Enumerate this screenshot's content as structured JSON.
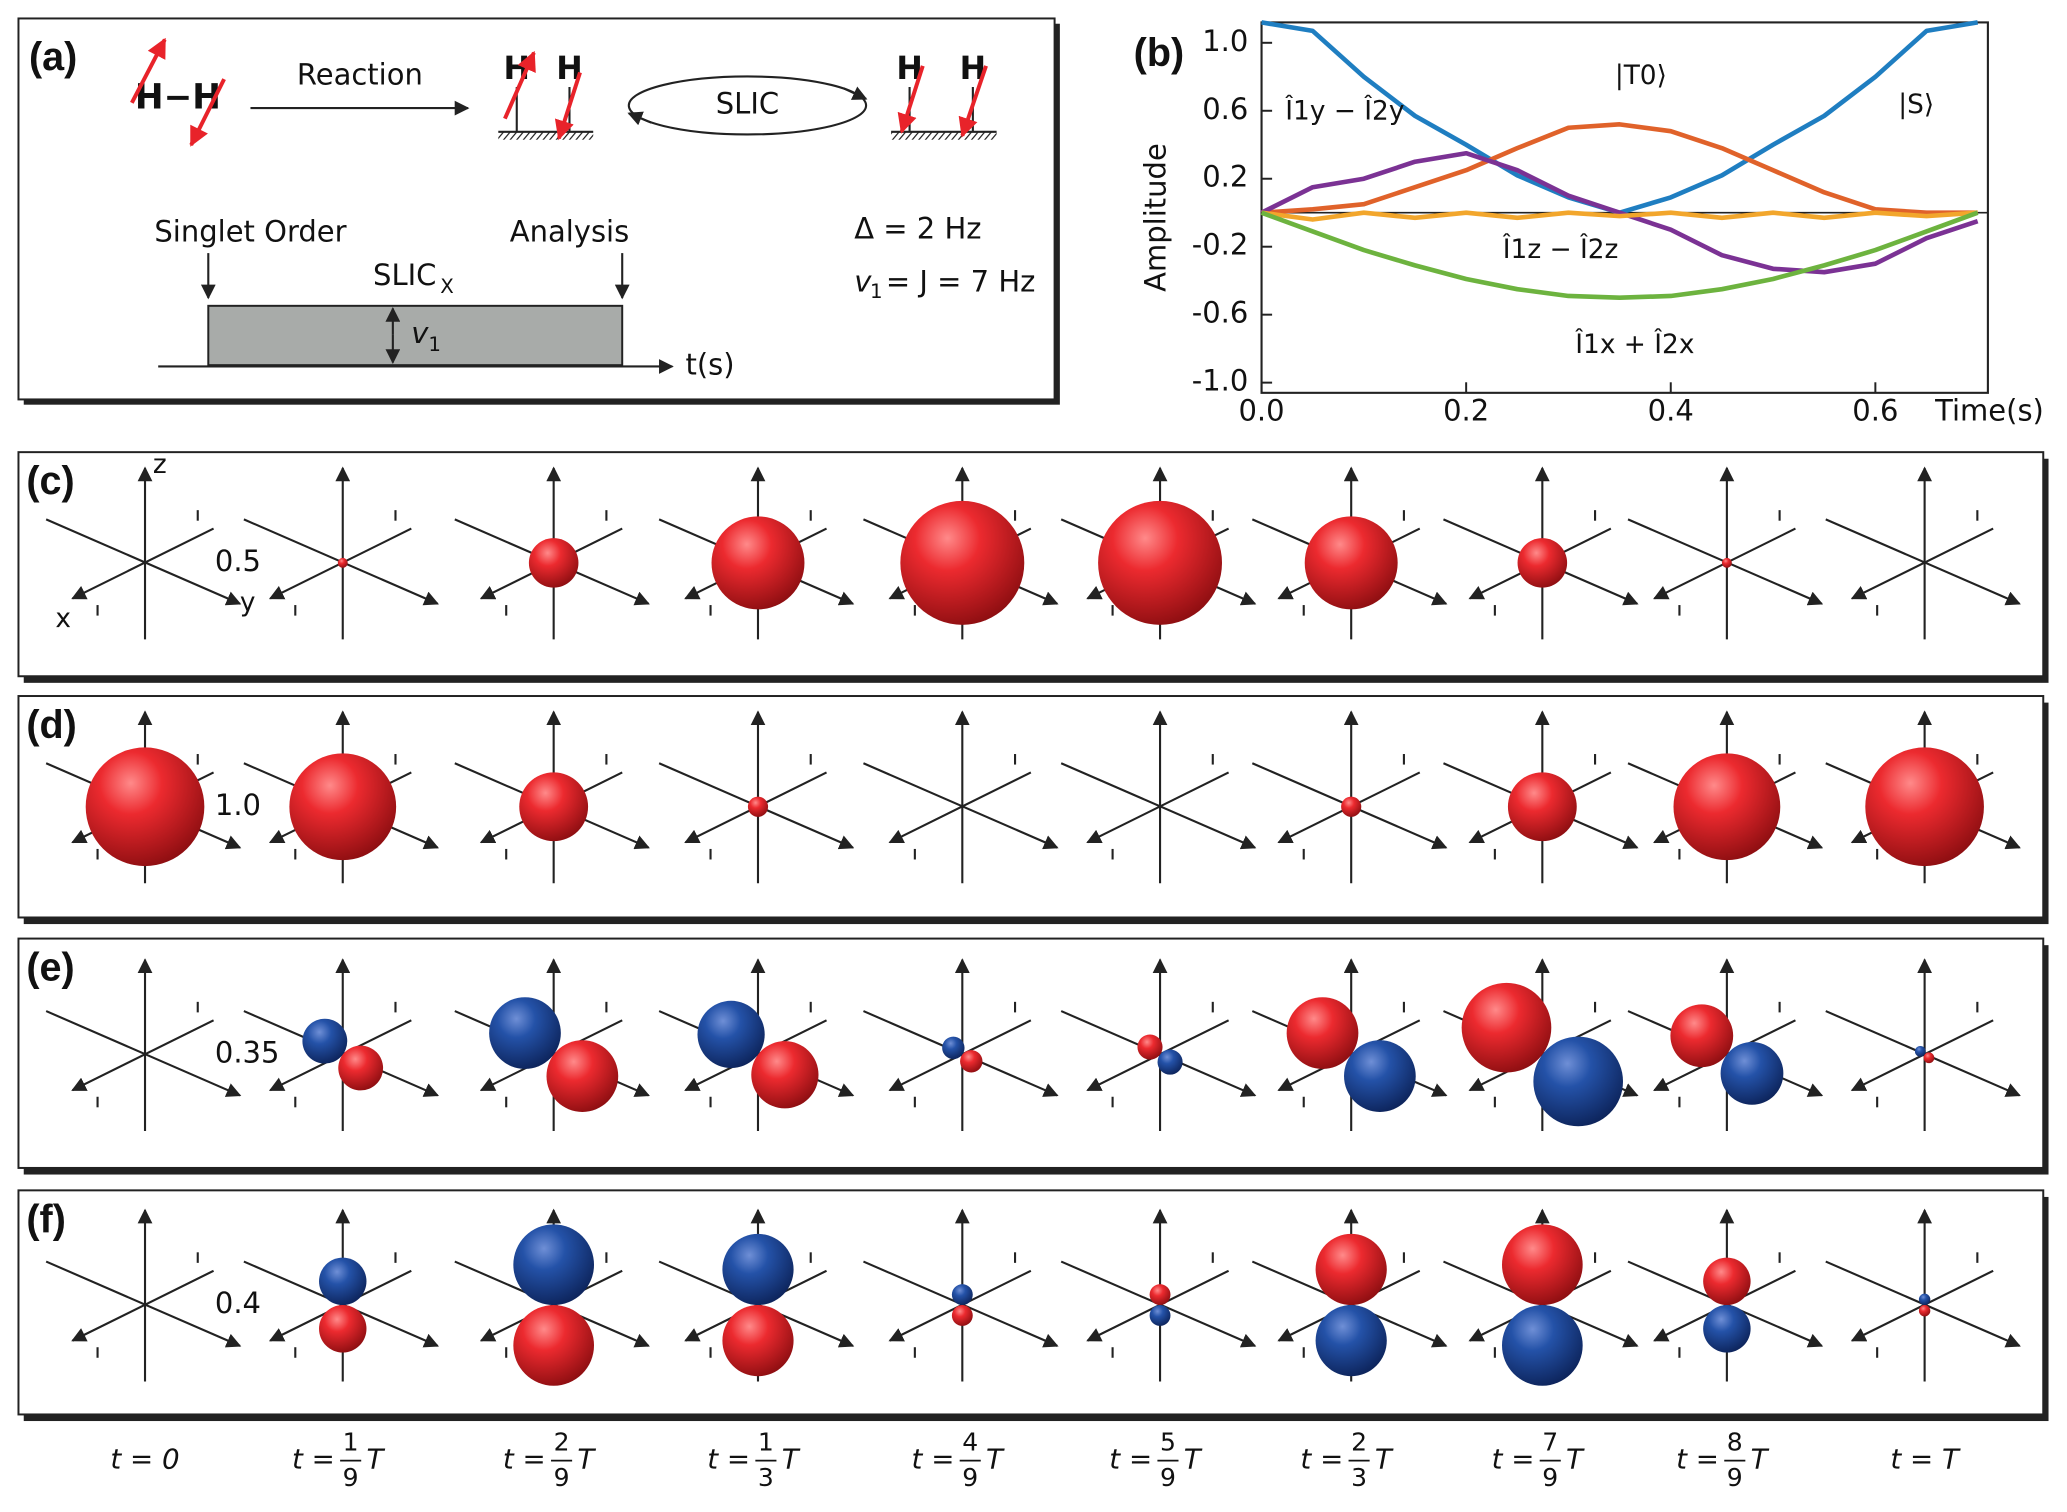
{
  "panel_a": {
    "label": "(a)",
    "molecule": "H−H",
    "reaction": "Reaction",
    "h_atom": "H",
    "slic": "SLIC",
    "singlet_order": "Singlet Order",
    "analysis": "Analysis",
    "pulse": "SLIC",
    "pulse_sub": "X",
    "nu": "v",
    "nu_sub": "1",
    "time_axis": "t(s)",
    "delta": "Δ = 2 Hz",
    "nu1_eq": "= J = 7 Hz"
  },
  "chart_data": {
    "type": "line",
    "label": "(b)",
    "ylabel": "Amplitude",
    "xlabel": "Time(s)",
    "x": [
      0,
      0.05,
      0.1,
      0.15,
      0.2,
      0.25,
      0.3,
      0.35,
      0.4,
      0.45,
      0.5,
      0.55,
      0.6,
      0.65,
      0.7
    ],
    "xlim": [
      0,
      0.71
    ],
    "ylim": [
      -1.06,
      1.12
    ],
    "xticks": [
      {
        "value": 0,
        "label": "0.0"
      },
      0.2,
      0.4,
      0.6
    ],
    "yticks": [
      {
        "value": 1,
        "label": "1.0"
      },
      0.6,
      0.2,
      -0.2,
      -0.6,
      {
        "value": -1,
        "label": "-1.0"
      }
    ],
    "series": [
      {
        "name": "|S⟩",
        "color": "#1f7ec1",
        "values": [
          1.12,
          1.07,
          0.8,
          0.57,
          0.4,
          0.22,
          0.09,
          0.0,
          0.09,
          0.22,
          0.4,
          0.57,
          0.8,
          1.07,
          1.12
        ]
      },
      {
        "name": "|T0⟩",
        "color": "#e0622a",
        "values": [
          0,
          0.02,
          0.05,
          0.15,
          0.25,
          0.38,
          0.5,
          0.52,
          0.48,
          0.38,
          0.25,
          0.12,
          0.02,
          0,
          0
        ]
      },
      {
        "name": "Î1y − Î2y",
        "color": "#7b3294",
        "values": [
          0,
          0.15,
          0.2,
          0.3,
          0.35,
          0.25,
          0.1,
          0,
          -0.1,
          -0.25,
          -0.33,
          -0.35,
          -0.3,
          -0.15,
          -0.05
        ]
      },
      {
        "name": "Î1z − Î2z",
        "color": "#f2a62c",
        "values": [
          0,
          -0.04,
          0,
          -0.03,
          0,
          -0.03,
          0,
          -0.02,
          0,
          -0.03,
          0,
          -0.03,
          0,
          -0.02,
          0
        ]
      },
      {
        "name": "Î1x + Î2x",
        "color": "#6db33f",
        "values": [
          0,
          -0.11,
          -0.22,
          -0.31,
          -0.39,
          -0.45,
          -0.49,
          -0.5,
          -0.49,
          -0.45,
          -0.39,
          -0.31,
          -0.22,
          -0.11,
          0
        ]
      }
    ]
  },
  "spheres": {
    "axis_labels": {
      "z": "z",
      "x": "x",
      "y": "y"
    },
    "red": "#e8232a",
    "blue": "#2150a8",
    "rows": [
      {
        "label": "(c)",
        "scale": "0.5",
        "arrangement": "single",
        "values": [
          0,
          0.08,
          0.4,
          0.75,
          1,
          1,
          0.75,
          0.4,
          0.08,
          0
        ]
      },
      {
        "label": "(d)",
        "scale": "1.0",
        "arrangement": "single",
        "values": [
          1,
          0.9,
          0.58,
          0.17,
          0,
          0,
          0.17,
          0.58,
          0.9,
          1
        ]
      },
      {
        "label": "(e)",
        "scale": "0.35",
        "arrangement": "diagonal",
        "values": [
          0,
          0.5,
          0.8,
          0.75,
          0.25,
          -0.28,
          -0.8,
          -1,
          -0.7,
          0.12
        ]
      },
      {
        "label": "(f)",
        "scale": "0.4",
        "arrangement": "vertical",
        "values": [
          0,
          0.5,
          0.85,
          0.75,
          0.22,
          -0.22,
          -0.75,
          -0.85,
          -0.5,
          0.12
        ]
      }
    ]
  },
  "times": [
    {
      "text": "t = 0"
    },
    {
      "pre": "t =",
      "num": "1",
      "den": "9",
      "post": "T"
    },
    {
      "pre": "t =",
      "num": "2",
      "den": "9",
      "post": "T"
    },
    {
      "pre": "t =",
      "num": "1",
      "den": "3",
      "post": "T"
    },
    {
      "pre": "t =",
      "num": "4",
      "den": "9",
      "post": "T"
    },
    {
      "pre": "t =",
      "num": "5",
      "den": "9",
      "post": "T"
    },
    {
      "pre": "t =",
      "num": "2",
      "den": "3",
      "post": "T"
    },
    {
      "pre": "t =",
      "num": "7",
      "den": "9",
      "post": "T"
    },
    {
      "pre": "t =",
      "num": "8",
      "den": "9",
      "post": "T"
    },
    {
      "text": "t = T"
    }
  ]
}
